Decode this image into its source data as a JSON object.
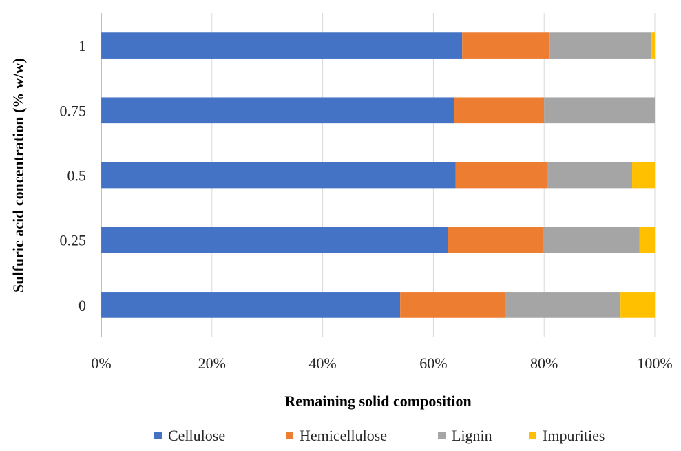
{
  "chart_data": {
    "type": "bar",
    "orientation": "horizontal",
    "stacked": true,
    "percent_stacked": true,
    "categories": [
      "0",
      "0.25",
      "0.5",
      "0.75",
      "1"
    ],
    "series": [
      {
        "name": "Cellulose",
        "color": "#4472C4",
        "values": [
          54,
          62.6,
          64,
          63.8,
          65.2
        ]
      },
      {
        "name": "Hemicellulose",
        "color": "#ED7D31",
        "values": [
          19,
          17.2,
          16.6,
          16.2,
          15.8
        ]
      },
      {
        "name": "Lignin",
        "color": "#A5A5A5",
        "values": [
          20.8,
          17.4,
          15.3,
          20,
          18.4
        ]
      },
      {
        "name": "Impurities",
        "color": "#FFC000",
        "values": [
          6.2,
          2.8,
          4.1,
          0,
          0.6
        ]
      }
    ],
    "title": "",
    "xlabel": "Remaining solid composition",
    "ylabel": "Sulfuric acid concentration (% w/w)",
    "xlim": [
      0,
      100
    ],
    "x_ticks": [
      "0%",
      "20%",
      "40%",
      "60%",
      "80%",
      "100%"
    ],
    "x_tick_values": [
      0,
      20,
      40,
      60,
      80,
      100
    ],
    "grid": true,
    "grid_color": "#D9D9D9",
    "legend": "bottom"
  }
}
